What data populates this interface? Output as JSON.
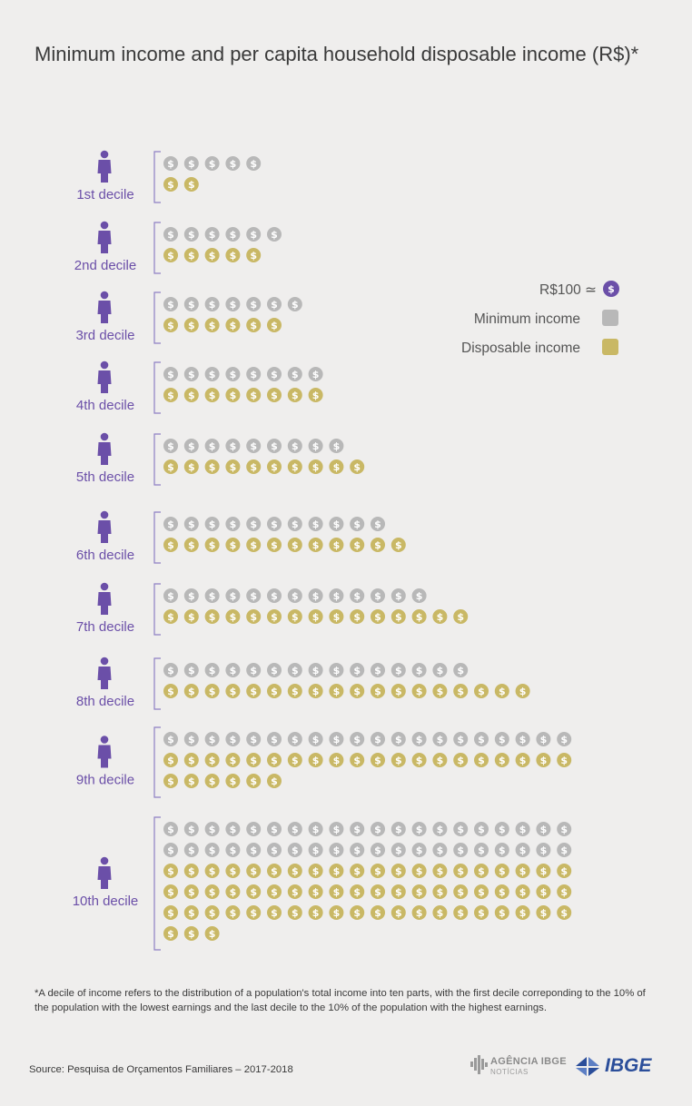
{
  "title": "Minimum income and per capita household disposable income (R$)*",
  "legend": {
    "unit_label": "R$100 ≃",
    "coin_symbol": "$",
    "minimum_label": "Minimum income",
    "disposable_label": "Disposable income"
  },
  "colors": {
    "background": "#efeeed",
    "minimum": "#b8b8b8",
    "disposable": "#c9b865",
    "person": "#6b4fa8",
    "unit_coin": "#6b4fa8",
    "bracket": "#8d7fc4"
  },
  "chart_data": {
    "type": "pictograph",
    "title": "Minimum income and per capita household disposable income (R$)*",
    "unit": "1 coin ≃ R$100",
    "categories": [
      "1st decile",
      "2nd decile",
      "3rd decile",
      "4th decile",
      "5th decile",
      "6th decile",
      "7th decile",
      "8th decile",
      "9th decile",
      "10th decile"
    ],
    "series": [
      {
        "name": "Minimum income",
        "values": [
          5,
          6,
          7,
          8,
          9,
          11,
          13,
          15,
          20,
          40
        ]
      },
      {
        "name": "Disposable income",
        "values": [
          2,
          5,
          6,
          8,
          10,
          12,
          15,
          18,
          26,
          63
        ]
      }
    ],
    "legend_position": "right"
  },
  "footnote": "*A decile of income refers to the distribution of a population's total income into ten parts, with the first decile correponding to the 10% of the population with the lowest earnings and the last decile to the 10% of the population with the highest earnings.",
  "source": "Source: Pesquisa de Orçamentos Familiares – 2017-2018",
  "logos": {
    "agencia_name": "AGÊNCIA IBGE",
    "agencia_sub": "NOTÍCIAS",
    "ibge": "IBGE"
  }
}
